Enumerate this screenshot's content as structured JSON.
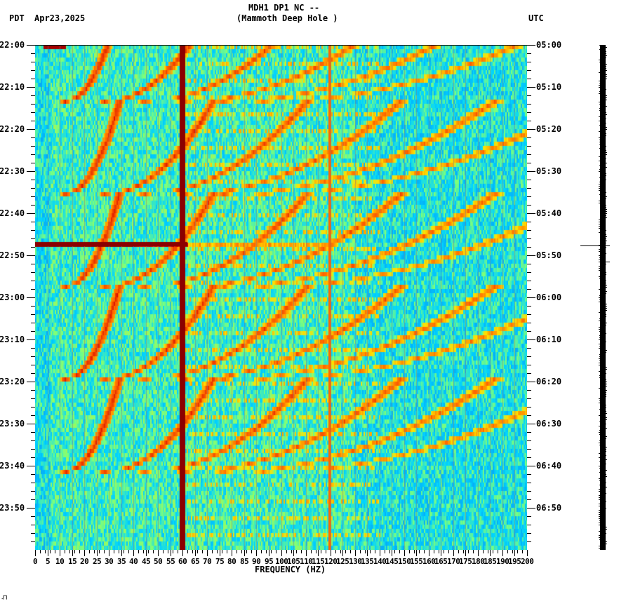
{
  "header": {
    "title": "MDH1 DP1 NC --",
    "subtitle": "(Mammoth Deep Hole )",
    "left_tz": "PDT",
    "date": "Apr23,2025",
    "right_tz": "UTC"
  },
  "footer_mark": "․⨅",
  "colors": {
    "background_low": "#0a5cf0",
    "mid": "#00e5ff",
    "high": "#ffe000",
    "peak": "#8b0000",
    "gridline": "#808080"
  },
  "chart_data": {
    "type": "heatmap",
    "title": "MDH1 DP1 NC -- (Mammoth Deep Hole )",
    "subtitle": "Spectrogram, Apr23,2025",
    "xlabel": "FREQUENCY (HZ)",
    "ylabel_left": "PDT",
    "ylabel_right": "UTC",
    "xlim": [
      0,
      200
    ],
    "x_ticks": [
      0,
      5,
      10,
      15,
      20,
      25,
      30,
      35,
      40,
      45,
      50,
      55,
      60,
      65,
      70,
      75,
      80,
      85,
      90,
      95,
      100,
      105,
      110,
      115,
      120,
      125,
      130,
      135,
      140,
      145,
      150,
      155,
      160,
      165,
      170,
      175,
      180,
      185,
      190,
      195,
      200
    ],
    "x_tick_labels": [
      "0",
      "5",
      "10",
      "15",
      "20",
      "25",
      "30",
      "35",
      "40",
      "45",
      "50",
      "55",
      "60",
      "65",
      "70",
      "75",
      "80",
      "85",
      "90",
      "95",
      "100",
      "105",
      "110",
      "115",
      "120",
      "125",
      "130",
      "135",
      "140",
      "145",
      "150",
      "155",
      "160",
      "165",
      "170",
      "175",
      "180",
      "185",
      "190",
      "195",
      "200"
    ],
    "y_range_minutes": [
      0,
      120
    ],
    "y_ticks_left": [
      "22:00",
      "22:10",
      "22:20",
      "22:30",
      "22:40",
      "22:50",
      "23:00",
      "23:10",
      "23:20",
      "23:30",
      "23:40",
      "23:50"
    ],
    "y_ticks_right": [
      "05:00",
      "05:10",
      "05:20",
      "05:30",
      "05:40",
      "05:50",
      "06:00",
      "06:10",
      "06:20",
      "06:30",
      "06:40",
      "06:50"
    ],
    "minor_tick_interval_minutes": 2,
    "grid": "vertical gray lines every 5 Hz",
    "features": [
      {
        "name": "60 Hz power-line hum",
        "freq_hz": 60,
        "type": "persistent vertical line",
        "intensity": "peak"
      },
      {
        "name": "120 Hz harmonic",
        "freq_hz": 120,
        "type": "faint vertical line",
        "intensity": "medium"
      },
      {
        "name": "broadband transient",
        "time_pdt": "22:47",
        "freq_range_hz": [
          0,
          62
        ],
        "type": "horizontal band",
        "intensity": "peak"
      },
      {
        "name": "onset transient",
        "time_pdt": "22:00",
        "freq_range_hz": [
          3,
          12
        ],
        "type": "short band",
        "intensity": "peak"
      },
      {
        "name": "gliding harmonic arcs",
        "type": "rising-frequency curves",
        "period_minutes": 22,
        "arc_starts_pdt": [
          "22:13",
          "22:35",
          "22:57",
          "23:19",
          "23:41"
        ],
        "base_freq_start_hz": 22,
        "base_freq_end_hz": 62,
        "harmonics": [
          1,
          2,
          3,
          4,
          5,
          6
        ]
      }
    ],
    "colormap": [
      "#0a3cd6",
      "#0a8cf0",
      "#00d4ff",
      "#7dff7a",
      "#ffe000",
      "#ff6a00",
      "#d40000",
      "#8b0000"
    ]
  },
  "trace": {
    "event_time_pdt": "22:47",
    "secondary_mark_time_pdt": "22:52"
  }
}
